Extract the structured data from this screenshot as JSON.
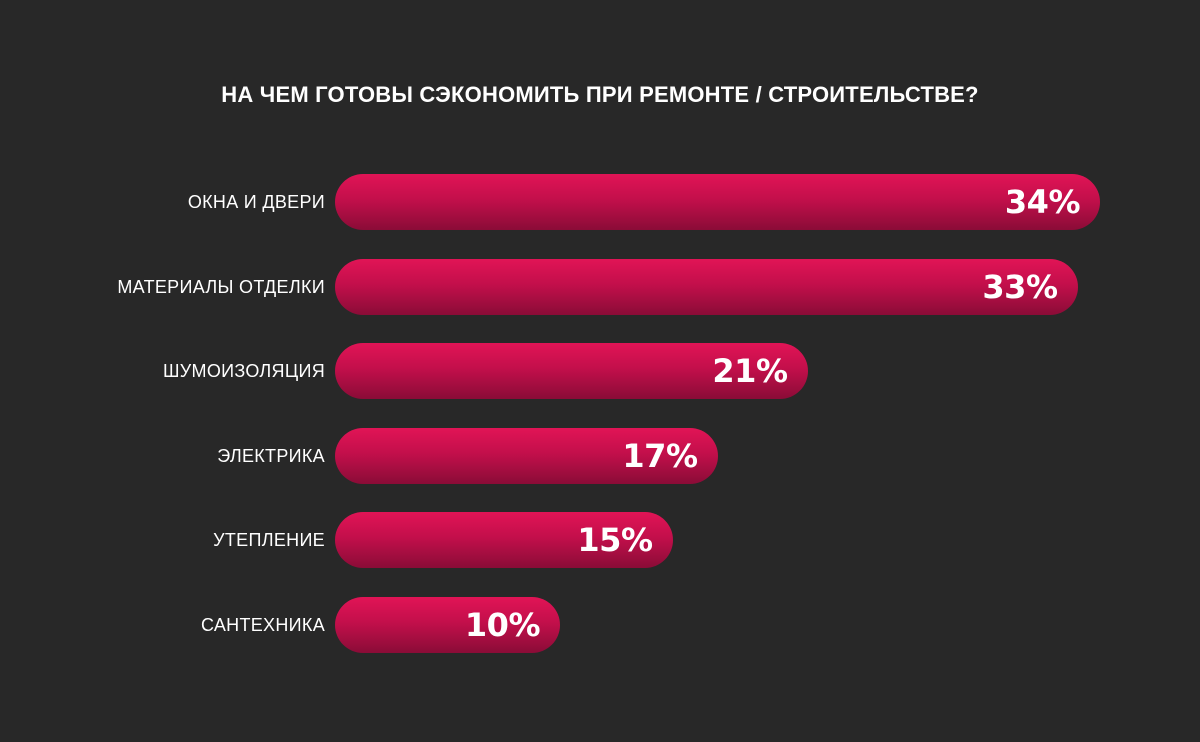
{
  "chart_data": {
    "type": "bar",
    "orientation": "horizontal",
    "title": "НА ЧЕМ ГОТОВЫ СЭКОНОМИТЬ ПРИ РЕМОНТЕ / СТРОИТЕЛЬСТВЕ?",
    "categories": [
      "ОКНА И ДВЕРИ",
      "МАТЕРИАЛЫ ОТДЕЛКИ",
      "ШУМОИЗОЛЯЦИЯ",
      "ЭЛЕКТРИКА",
      "УТЕПЛЕНИЕ",
      "САНТЕХНИКА"
    ],
    "values": [
      34,
      33,
      21,
      17,
      15,
      10
    ],
    "value_labels": [
      "34%",
      "33%",
      "21%",
      "17%",
      "15%",
      "10%"
    ],
    "unit": "%",
    "grid": false,
    "legend": "none",
    "colors": {
      "background": "#282828",
      "bar_top": "#e11456",
      "bar_bottom": "#8a0c37",
      "text": "#ffffff"
    }
  }
}
